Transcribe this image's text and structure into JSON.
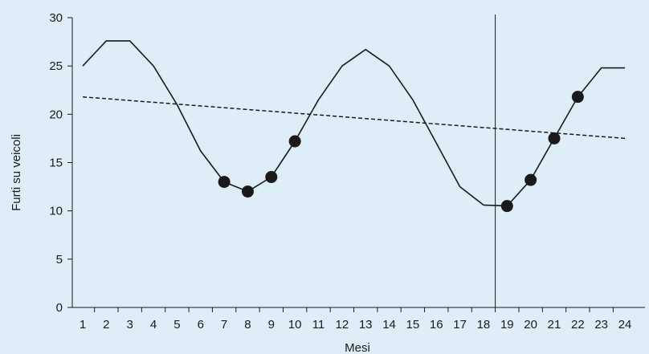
{
  "chart_data": {
    "type": "line",
    "title": "",
    "xlabel": "Mesi",
    "ylabel": "Furti su veicoli",
    "xlim": [
      1,
      24
    ],
    "ylim": [
      0,
      30
    ],
    "x_ticks": [
      1,
      2,
      3,
      4,
      5,
      6,
      7,
      8,
      9,
      10,
      11,
      12,
      13,
      14,
      15,
      16,
      17,
      18,
      19,
      20,
      21,
      22,
      23,
      24
    ],
    "y_ticks": [
      0,
      5,
      10,
      15,
      20,
      25,
      30
    ],
    "grid": false,
    "background": "#ddeef8",
    "line_color": "#1a1a1a",
    "series": [
      {
        "style": "solid",
        "x": [
          1,
          2,
          3,
          4,
          5,
          6,
          7,
          8,
          9,
          10,
          11,
          12,
          13,
          14,
          15,
          16,
          17,
          18,
          19,
          20,
          21,
          22,
          23,
          24
        ],
        "values": [
          25,
          27.6,
          27.6,
          25,
          21,
          16.2,
          13,
          12,
          13.5,
          17.2,
          21.5,
          25,
          26.7,
          25,
          21.5,
          17,
          12.5,
          10.6,
          10.5,
          13.2,
          17.5,
          21.8,
          24.8,
          24.8
        ],
        "markers_at": [
          7,
          8,
          9,
          10,
          19,
          20,
          21,
          22
        ]
      },
      {
        "style": "dashed",
        "x": [
          1,
          24
        ],
        "values": [
          21.8,
          17.5
        ]
      }
    ],
    "reference_lines": [
      {
        "axis": "x",
        "value": 18
      }
    ]
  }
}
